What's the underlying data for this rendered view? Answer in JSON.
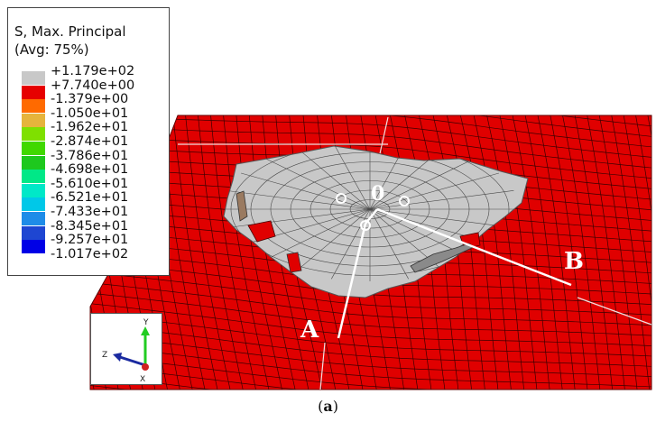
{
  "legend": {
    "title_line1": "S, Max. Principal",
    "title_line2": "(Avg: 75%)",
    "entries": [
      {
        "value": "+1.179e+02",
        "color": "#c8c8c8"
      },
      {
        "value": "+7.740e+00",
        "color": "#c8c8c8"
      },
      {
        "value": "-1.379e+00",
        "color": "#e60000"
      },
      {
        "value": "-1.050e+01",
        "color": "#ff6a00"
      },
      {
        "value": "-1.962e+01",
        "color": "#e6b43c"
      },
      {
        "value": "-2.874e+01",
        "color": "#7fe000"
      },
      {
        "value": "-3.786e+01",
        "color": "#40d800"
      },
      {
        "value": "-4.698e+01",
        "color": "#1ec81e"
      },
      {
        "value": "-5.610e+01",
        "color": "#00e887"
      },
      {
        "value": "-6.521e+01",
        "color": "#00e8c8"
      },
      {
        "value": "-7.433e+01",
        "color": "#00c8e8"
      },
      {
        "value": "-8.345e+01",
        "color": "#1e8ce8"
      },
      {
        "value": "-9.257e+01",
        "color": "#1e46d2"
      },
      {
        "value": "-1.017e+02",
        "color": "#0000e6"
      }
    ]
  },
  "labels": {
    "origin": "0",
    "path_a": "A",
    "path_b": "B"
  },
  "triad": {
    "y": "Y",
    "z": "Z",
    "x": "X"
  },
  "caption": {
    "open": "(",
    "letter": "a",
    "close": ")"
  },
  "colors": {
    "mesh_red": "#e00000",
    "damage_gray": "#c8c8c8",
    "mesh_line": "#3a0000",
    "path_line": "#ffffff"
  }
}
